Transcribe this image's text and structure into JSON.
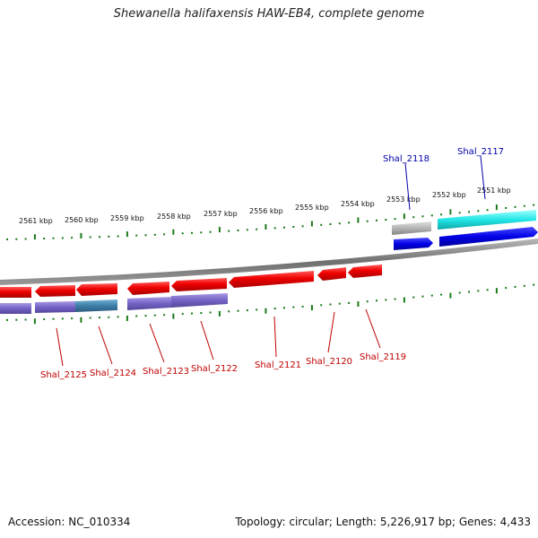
{
  "header": {
    "title": "Shewanella halifaxensis HAW-EB4, complete genome"
  },
  "footer": {
    "accession": "Accession: NC_010334",
    "topology": "Topology: circular; Length: 5,226,917 bp; Genes: 4,433"
  },
  "scale_labels": [
    "2561 kbp",
    "2560 kbp",
    "2559 kbp",
    "2558 kbp",
    "2557 kbp",
    "2556 kbp",
    "2555 kbp",
    "2554 kbp",
    "2553 kbp",
    "2552 kbp",
    "2551 kbp"
  ],
  "gene_labels_forward": [
    "Shal_2118",
    "Shal_2117"
  ],
  "gene_labels_reverse": [
    "Shal_2125",
    "Shal_2124",
    "Shal_2123",
    "Shal_2122",
    "Shal_2121",
    "Shal_2120",
    "Shal_2119"
  ],
  "colors": {
    "backbone": "#8c8c8c",
    "tick": "#1a7a1a",
    "cds_red": "#ee0000",
    "cds_purple": "#7b68c8",
    "cds_teal": "#3e7fa8",
    "cds_blue": "#0000e6",
    "cds_cyan": "#22e0e0",
    "cds_gray": "#b4b4b4"
  }
}
